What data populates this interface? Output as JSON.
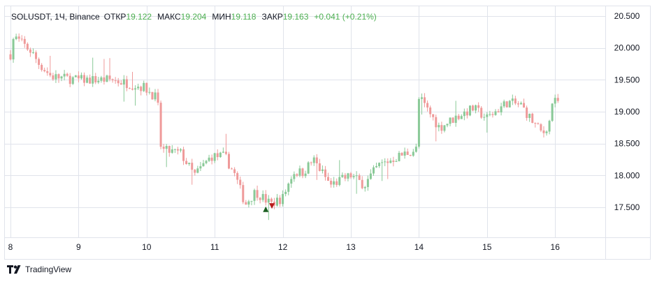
{
  "legend": {
    "symbol": "SOLUSDT, 1Ч, Binance",
    "open_label": "ОТКР",
    "open_value": "19.122",
    "high_label": "МАКС",
    "high_value": "19.204",
    "low_label": "МИН",
    "low_value": "19.118",
    "close_label": "ЗАКР",
    "close_value": "19.163",
    "change": "+0.041 (+0.21%)"
  },
  "footer": {
    "brand": "TradingView",
    "logo_icon": "tradingview-logo-icon"
  },
  "colors": {
    "up": "#26a69a",
    "up_candle": "#89c997",
    "down": "#ef9a9a",
    "grid": "#e0e3eb",
    "text": "#131722",
    "legend_value": "#4caf50"
  },
  "chart_data": {
    "type": "candlestick",
    "symbol": "SOLUSDT",
    "interval": "1H",
    "exchange": "Binance",
    "y_ticks": [
      "20.500",
      "20.000",
      "19.500",
      "19.000",
      "18.500",
      "18.000",
      "17.500"
    ],
    "ylim": [
      16.95,
      20.65
    ],
    "x_ticks": [
      "8",
      "9",
      "10",
      "11",
      "12",
      "13",
      "14",
      "15",
      "16"
    ],
    "markers": [
      {
        "type": "buy",
        "day": 11.75,
        "price": 17.47
      },
      {
        "type": "sell",
        "day": 11.84,
        "price": 17.52
      }
    ],
    "key_prices": [
      {
        "day": 8.0,
        "price": 19.9
      },
      {
        "day": 8.05,
        "price": 20.18
      },
      {
        "day": 8.3,
        "price": 19.95
      },
      {
        "day": 8.42,
        "price": 19.75
      },
      {
        "day": 8.6,
        "price": 19.55
      },
      {
        "day": 9.0,
        "price": 19.5
      },
      {
        "day": 9.5,
        "price": 19.5
      },
      {
        "day": 9.97,
        "price": 19.38
      },
      {
        "day": 10.16,
        "price": 19.2
      },
      {
        "day": 10.2,
        "price": 18.4
      },
      {
        "day": 10.5,
        "price": 18.35
      },
      {
        "day": 10.7,
        "price": 18.0
      },
      {
        "day": 10.95,
        "price": 18.3
      },
      {
        "day": 11.15,
        "price": 18.3
      },
      {
        "day": 11.3,
        "price": 18.0
      },
      {
        "day": 11.45,
        "price": 17.55
      },
      {
        "day": 11.6,
        "price": 17.75
      },
      {
        "day": 11.82,
        "price": 17.55
      },
      {
        "day": 12.0,
        "price": 17.65
      },
      {
        "day": 12.15,
        "price": 18.05
      },
      {
        "day": 12.3,
        "price": 18.05
      },
      {
        "day": 12.45,
        "price": 18.25
      },
      {
        "day": 12.7,
        "price": 17.85
      },
      {
        "day": 13.0,
        "price": 18.0
      },
      {
        "day": 13.2,
        "price": 17.85
      },
      {
        "day": 13.4,
        "price": 18.15
      },
      {
        "day": 13.7,
        "price": 18.3
      },
      {
        "day": 13.98,
        "price": 18.42
      },
      {
        "day": 14.02,
        "price": 19.2
      },
      {
        "day": 14.3,
        "price": 18.75
      },
      {
        "day": 14.6,
        "price": 18.95
      },
      {
        "day": 14.8,
        "price": 19.05
      },
      {
        "day": 15.0,
        "price": 18.9
      },
      {
        "day": 15.3,
        "price": 19.15
      },
      {
        "day": 15.5,
        "price": 19.1
      },
      {
        "day": 15.7,
        "price": 18.8
      },
      {
        "day": 15.82,
        "price": 18.65
      },
      {
        "day": 15.92,
        "price": 18.85
      },
      {
        "day": 15.95,
        "price": 19.15
      },
      {
        "day": 16.05,
        "price": 19.15
      }
    ]
  }
}
